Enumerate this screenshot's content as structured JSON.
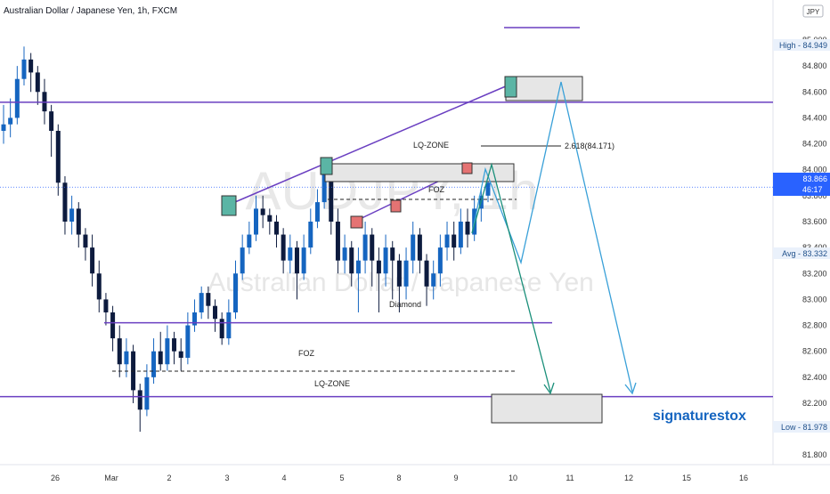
{
  "header": {
    "title": "Australian Dollar / Japanese Yen, 1h, FXCM"
  },
  "watermark": {
    "ticker": "AUDJPY, 1h",
    "name": "Australian Dollar / Japanese Yen"
  },
  "brand_label": "signaturestox",
  "currency_badge": "JPY",
  "chart_data": {
    "type": "candlestick",
    "title": "Australian Dollar / Japanese Yen, 1h, FXCM",
    "ylim": [
      81.6,
      85.1
    ],
    "x_axis_labels": [
      "26",
      "Mar",
      "2",
      "3",
      "4",
      "5",
      "8",
      "9",
      "10",
      "11",
      "12",
      "15",
      "16"
    ],
    "y_axis_labels": [
      "85.000",
      "84.800",
      "84.600",
      "84.400",
      "84.200",
      "84.000",
      "83.800",
      "83.600",
      "83.400",
      "83.200",
      "83.000",
      "82.800",
      "82.600",
      "82.400",
      "82.200",
      "82.000",
      "81.800"
    ],
    "price_tags": [
      {
        "label": "High",
        "value": "84.949",
        "color": "#eaf1fb",
        "text_color": "#1e4f8a"
      },
      {
        "label": "",
        "value": "83.866",
        "sub": "46:17",
        "color": "#2962ff",
        "text_color": "#ffffff"
      },
      {
        "label": "Avg",
        "value": "83.332",
        "color": "#eaf1fb",
        "text_color": "#1e4f8a"
      },
      {
        "label": "Low",
        "value": "81.978",
        "color": "#eaf1fb",
        "text_color": "#1e4f8a"
      }
    ],
    "current_price": 83.866,
    "horizontal_levels": [
      84.52,
      82.82,
      82.25
    ],
    "annotations": [
      {
        "text": "LQ-ZONE",
        "price": 84.22
      },
      {
        "text": "2.618(84.171)",
        "price": 84.22
      },
      {
        "text": "FOZ",
        "price": 83.91
      },
      {
        "text": "Diamond",
        "price": 82.89
      },
      {
        "text": "FOZ",
        "price": 82.53
      },
      {
        "text": "LQ-ZONE",
        "price": 82.33
      }
    ],
    "candles": [
      [
        84.3,
        84.35,
        84.5,
        84.2
      ],
      [
        84.35,
        84.4,
        84.55,
        84.25
      ],
      [
        84.4,
        84.7,
        84.8,
        84.35
      ],
      [
        84.7,
        84.85,
        84.95,
        84.65
      ],
      [
        84.85,
        84.75,
        84.9,
        84.6
      ],
      [
        84.75,
        84.6,
        84.8,
        84.5
      ],
      [
        84.6,
        84.45,
        84.7,
        84.35
      ],
      [
        84.45,
        84.3,
        84.5,
        84.1
      ],
      [
        84.3,
        83.9,
        84.35,
        83.8
      ],
      [
        83.9,
        83.6,
        83.95,
        83.5
      ],
      [
        83.6,
        83.7,
        83.8,
        83.5
      ],
      [
        83.7,
        83.5,
        83.75,
        83.4
      ],
      [
        83.5,
        83.4,
        83.55,
        83.3
      ],
      [
        83.4,
        83.2,
        83.5,
        83.1
      ],
      [
        83.2,
        83.0,
        83.3,
        82.9
      ],
      [
        83.0,
        82.9,
        83.05,
        82.8
      ],
      [
        82.9,
        82.7,
        82.95,
        82.6
      ],
      [
        82.7,
        82.5,
        82.8,
        82.4
      ],
      [
        82.5,
        82.6,
        82.7,
        82.4
      ],
      [
        82.6,
        82.3,
        82.65,
        82.2
      ],
      [
        82.3,
        82.15,
        82.35,
        81.98
      ],
      [
        82.15,
        82.4,
        82.5,
        82.1
      ],
      [
        82.4,
        82.6,
        82.7,
        82.35
      ],
      [
        82.6,
        82.5,
        82.75,
        82.45
      ],
      [
        82.5,
        82.7,
        82.8,
        82.45
      ],
      [
        82.7,
        82.6,
        82.75,
        82.5
      ],
      [
        82.6,
        82.55,
        82.7,
        82.45
      ],
      [
        82.55,
        82.8,
        82.9,
        82.5
      ],
      [
        82.8,
        82.9,
        83.0,
        82.75
      ],
      [
        82.9,
        83.05,
        83.1,
        82.85
      ],
      [
        83.05,
        82.95,
        83.1,
        82.85
      ],
      [
        82.95,
        82.85,
        83.0,
        82.75
      ],
      [
        82.85,
        82.7,
        82.9,
        82.65
      ],
      [
        82.7,
        82.9,
        83.0,
        82.65
      ],
      [
        82.9,
        83.2,
        83.3,
        82.85
      ],
      [
        83.2,
        83.4,
        83.5,
        83.15
      ],
      [
        83.4,
        83.5,
        83.6,
        83.35
      ],
      [
        83.5,
        83.7,
        83.8,
        83.45
      ],
      [
        83.7,
        83.65,
        83.8,
        83.55
      ],
      [
        83.65,
        83.6,
        83.7,
        83.5
      ],
      [
        83.6,
        83.5,
        83.65,
        83.4
      ],
      [
        83.5,
        83.3,
        83.55,
        83.2
      ],
      [
        83.3,
        83.4,
        83.5,
        83.2
      ],
      [
        83.4,
        83.2,
        83.45,
        83.0
      ],
      [
        83.2,
        83.4,
        83.5,
        83.15
      ],
      [
        83.4,
        83.6,
        83.7,
        83.35
      ],
      [
        83.6,
        83.75,
        83.85,
        83.55
      ],
      [
        83.75,
        84.0,
        84.05,
        83.7
      ],
      [
        84.0,
        83.6,
        84.05,
        83.5
      ],
      [
        83.6,
        83.3,
        83.7,
        83.2
      ],
      [
        83.3,
        83.4,
        83.5,
        83.2
      ],
      [
        83.4,
        83.2,
        83.45,
        83.1
      ],
      [
        83.2,
        83.3,
        83.4,
        82.9
      ],
      [
        83.3,
        83.5,
        83.6,
        83.2
      ],
      [
        83.5,
        83.3,
        83.55,
        83.1
      ],
      [
        83.3,
        83.2,
        83.4,
        82.9
      ],
      [
        83.2,
        83.4,
        83.5,
        83.1
      ],
      [
        83.4,
        83.3,
        83.45,
        83.0
      ],
      [
        83.3,
        83.1,
        83.35,
        82.9
      ],
      [
        83.1,
        83.3,
        83.4,
        83.0
      ],
      [
        83.3,
        83.5,
        83.6,
        83.2
      ],
      [
        83.5,
        83.3,
        83.55,
        83.2
      ],
      [
        83.3,
        83.1,
        83.35,
        82.95
      ],
      [
        83.1,
        83.2,
        83.3,
        83.0
      ],
      [
        83.2,
        83.4,
        83.5,
        83.1
      ],
      [
        83.4,
        83.5,
        83.6,
        83.3
      ],
      [
        83.5,
        83.4,
        83.6,
        83.3
      ],
      [
        83.4,
        83.6,
        83.7,
        83.35
      ],
      [
        83.6,
        83.5,
        83.7,
        83.4
      ],
      [
        83.5,
        83.7,
        83.8,
        83.45
      ],
      [
        83.7,
        83.8,
        83.85,
        83.6
      ],
      [
        83.8,
        83.9,
        84.0,
        83.75
      ]
    ]
  }
}
